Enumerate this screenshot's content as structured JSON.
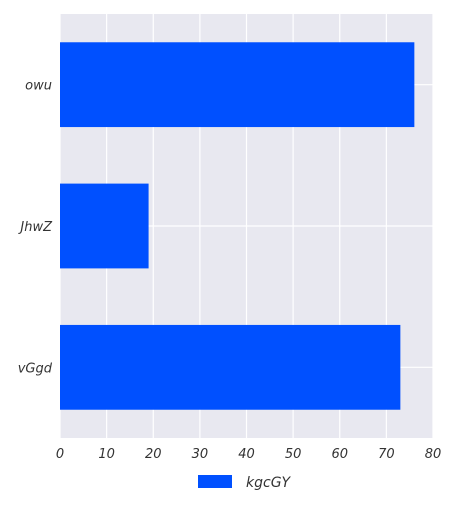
{
  "chart_data": {
    "type": "bar",
    "orientation": "horizontal",
    "categories": [
      "owu",
      "JhwZ",
      "vGgd"
    ],
    "series": [
      {
        "name": "kgcGY",
        "values": [
          76,
          19,
          73
        ],
        "color": "#0050ff"
      }
    ],
    "xlim": [
      0,
      80
    ],
    "x_ticks": [
      0,
      10,
      20,
      30,
      40,
      50,
      60,
      70,
      80
    ],
    "grid": true,
    "legend_placement": "bottom-center",
    "background": "#e8e8f0"
  }
}
